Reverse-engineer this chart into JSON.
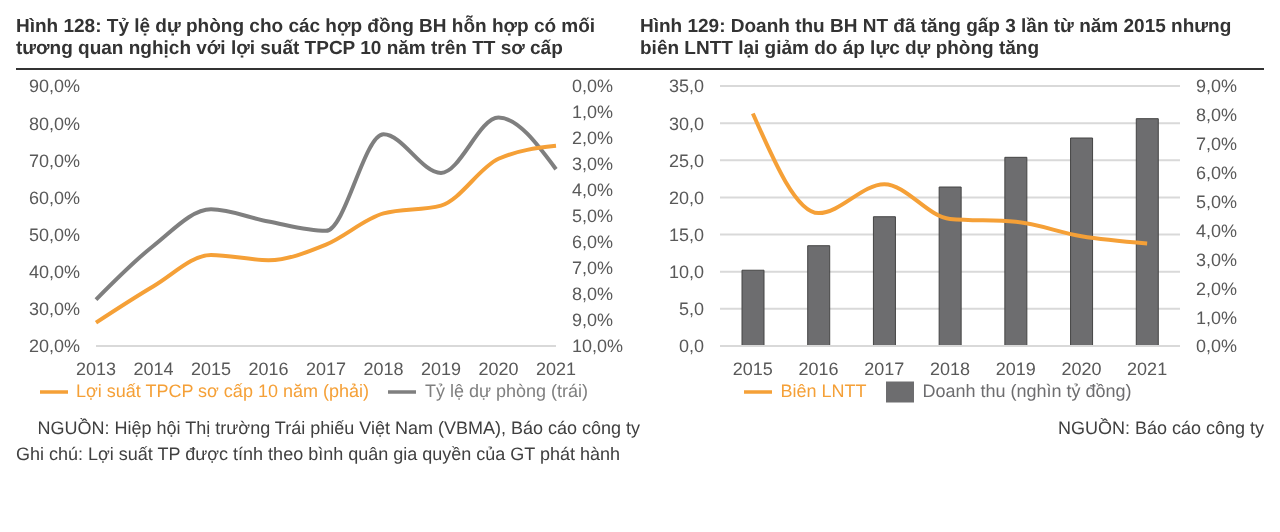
{
  "chart_data": [
    {
      "type": "line",
      "title": "Hình 128: Tỷ lệ dự phòng cho các hợp đồng BH hỗn hợp có mối tương quan nghịch với lợi suất TPCP 10 năm trên TT sơ cấp",
      "categories": [
        "2013",
        "2014",
        "2015",
        "2016",
        "2017",
        "2018",
        "2019",
        "2020",
        "2021"
      ],
      "series": [
        {
          "name": "Tỷ lệ dự phòng (trái)",
          "color": "#7f7f7f",
          "values": [
            32.5,
            47,
            56.8,
            53.5,
            51,
            77,
            66.6,
            81.5,
            67.6
          ]
        },
        {
          "name": "Lợi suất TPCP sơ cấp 10 năm (phải)",
          "color": "#f5a037",
          "axis": "y2",
          "values": [
            9.1,
            7.7,
            6.5,
            6.7,
            6.1,
            4.9,
            4.6,
            2.8,
            2.3
          ]
        }
      ],
      "ylim": [
        20,
        90
      ],
      "yticks": [
        {
          "value": 20,
          "label": "20,0%"
        },
        {
          "value": 30,
          "label": "30,0%"
        },
        {
          "value": 40,
          "label": "40,0%"
        },
        {
          "value": 50,
          "label": "50,0%"
        },
        {
          "value": 60,
          "label": "60,0%"
        },
        {
          "value": 70,
          "label": "70,0%"
        },
        {
          "value": 80,
          "label": "80,0%"
        },
        {
          "value": 90,
          "label": "90,0%"
        }
      ],
      "y2lim": [
        10,
        0
      ],
      "y2ticks": [
        {
          "value": 0,
          "label": "0,0%"
        },
        {
          "value": 1,
          "label": "1,0%"
        },
        {
          "value": 2,
          "label": "2,0%"
        },
        {
          "value": 3,
          "label": "3,0%"
        },
        {
          "value": 4,
          "label": "4,0%"
        },
        {
          "value": 5,
          "label": "5,0%"
        },
        {
          "value": 6,
          "label": "6,0%"
        },
        {
          "value": 7,
          "label": "7,0%"
        },
        {
          "value": 8,
          "label": "8,0%"
        },
        {
          "value": 9,
          "label": "9,0%"
        },
        {
          "value": 10,
          "label": "10,0%"
        }
      ],
      "grid": false,
      "legend": "bottom",
      "annotations": [
        "NGUỒN: Hiệp hội Thị trường Trái phiếu Việt Nam (VBMA), Báo cáo công ty",
        "Ghi chú: Lợi suất TP được tính theo bình quân gia quyền của GT phát hành"
      ]
    },
    {
      "type": "bar",
      "title": "Hình 129: Doanh thu BH NT đã tăng gấp 3 lần từ năm 2015 nhưng biên LNTT lại giảm do áp lực dự phòng tăng",
      "categories": [
        "2015",
        "2016",
        "2017",
        "2018",
        "2019",
        "2020",
        "2021"
      ],
      "series": [
        {
          "name": "Doanh thu (nghìn tỷ đồng)",
          "color": "#6d6d6f",
          "values": [
            10.2,
            13.5,
            17.4,
            21.4,
            25.4,
            28,
            30.6
          ]
        },
        {
          "name": "Biên LNTT",
          "type": "line",
          "color": "#f5a037",
          "axis": "y2",
          "values": [
            8.05,
            4.6,
            5.6,
            4.4,
            4.3,
            3.8,
            3.55
          ]
        }
      ],
      "ylim": [
        0,
        35
      ],
      "yticks": [
        {
          "value": 0,
          "label": "0,0"
        },
        {
          "value": 5,
          "label": "5,0"
        },
        {
          "value": 10,
          "label": "10,0"
        },
        {
          "value": 15,
          "label": "15,0"
        },
        {
          "value": 20,
          "label": "20,0"
        },
        {
          "value": 25,
          "label": "25,0"
        },
        {
          "value": 30,
          "label": "30,0"
        },
        {
          "value": 35,
          "label": "35,0"
        }
      ],
      "y2lim": [
        0,
        9
      ],
      "y2ticks": [
        {
          "value": 0,
          "label": "0,0%"
        },
        {
          "value": 1,
          "label": "1,0%"
        },
        {
          "value": 2,
          "label": "2,0%"
        },
        {
          "value": 3,
          "label": "3,0%"
        },
        {
          "value": 4,
          "label": "4,0%"
        },
        {
          "value": 5,
          "label": "5,0%"
        },
        {
          "value": 6,
          "label": "6,0%"
        },
        {
          "value": 7,
          "label": "7,0%"
        },
        {
          "value": 8,
          "label": "8,0%"
        },
        {
          "value": 9,
          "label": "9,0%"
        }
      ],
      "grid": "y",
      "legend": "bottom",
      "annotations": [
        "NGUỒN: Báo cáo công ty"
      ]
    }
  ]
}
